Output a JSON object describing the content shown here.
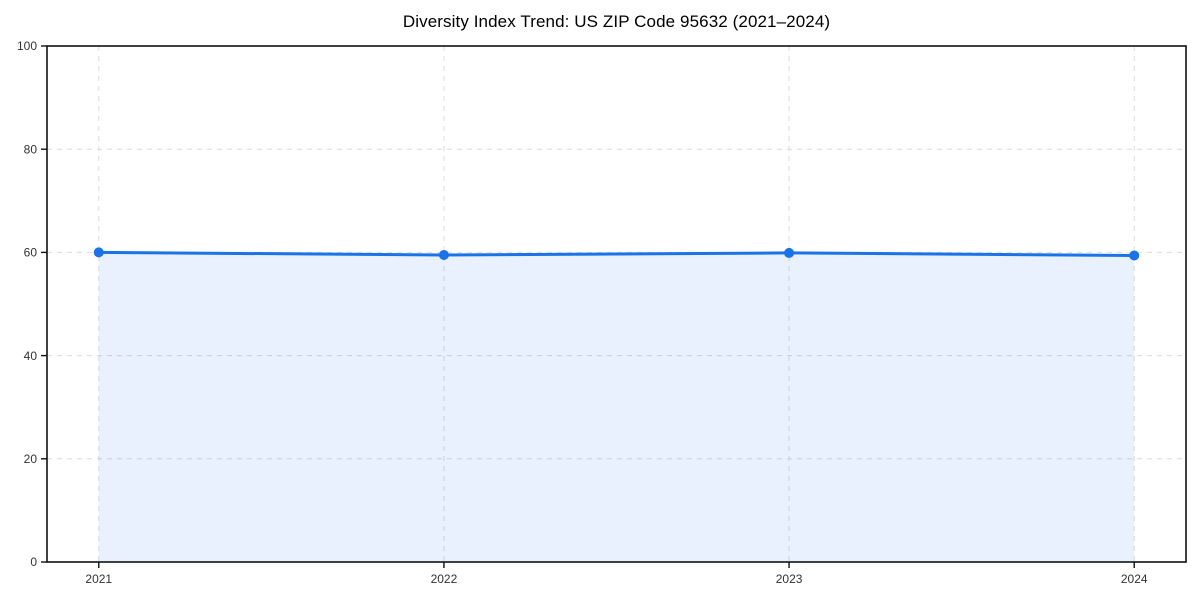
{
  "chart_data": {
    "type": "area",
    "title": "Diversity Index Trend: US ZIP Code 95632 (2021–2024)",
    "xlabel": "",
    "ylabel": "",
    "x": [
      2021,
      2022,
      2023,
      2024
    ],
    "x_tick_labels": [
      "2021",
      "2022",
      "2023",
      "2024"
    ],
    "series": [
      {
        "name": "Diversity Index",
        "values": [
          60.0,
          59.5,
          59.9,
          59.4
        ]
      }
    ],
    "ylim": [
      0,
      100
    ],
    "yticks": [
      0,
      20,
      40,
      60,
      80,
      100
    ],
    "ytick_labels": [
      "0",
      "20",
      "40",
      "60",
      "80",
      "100"
    ],
    "x_margin_fraction": 0.05,
    "grid": "on",
    "grid_style": "dashed",
    "legend": "none",
    "colors": {
      "line": "#1a73e8",
      "marker": "#1a73e8",
      "area_fill": "rgba(26,115,232,0.10)",
      "grid": "#dcdcdc",
      "axis": "#111111",
      "tick_label": "#333333",
      "title": "#000000",
      "background": "#ffffff"
    }
  }
}
